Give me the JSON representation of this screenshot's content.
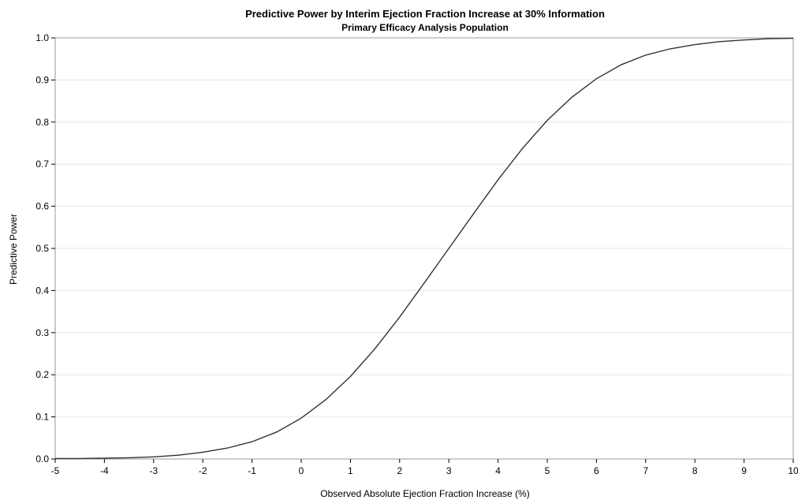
{
  "chart_data": {
    "type": "line",
    "title": "Predictive Power by Interim Ejection Fraction Increase at 30% Information",
    "subtitle": "Primary Efficacy Analysis Population",
    "xlabel": "Observed Absolute Ejection Fraction Increase (%)",
    "ylabel": "Predictive Power",
    "xlim": [
      -5,
      10
    ],
    "ylim": [
      0,
      1
    ],
    "xticks": [
      -5,
      -4,
      -3,
      -2,
      -1,
      0,
      1,
      2,
      3,
      4,
      5,
      6,
      7,
      8,
      9,
      10
    ],
    "yticks": [
      0.0,
      0.1,
      0.2,
      0.3,
      0.4,
      0.5,
      0.6,
      0.7,
      0.8,
      0.9,
      1.0
    ],
    "xtick_labels": [
      "-5",
      "-4",
      "-3",
      "-2",
      "-1",
      "0",
      "1",
      "2",
      "3",
      "4",
      "5",
      "6",
      "7",
      "8",
      "9",
      "10"
    ],
    "ytick_labels": [
      "0.0",
      "0.1",
      "0.2",
      "0.3",
      "0.4",
      "0.5",
      "0.6",
      "0.7",
      "0.8",
      "0.9",
      "1.0"
    ],
    "grid": {
      "horizontal": true,
      "vertical": false
    },
    "line_color": "#333333",
    "grid_color": "#e6e6e6",
    "series": [
      {
        "x": [
          -5,
          -4.5,
          -4,
          -3.5,
          -3,
          -2.5,
          -2,
          -1.5,
          -1,
          -0.5,
          0,
          0.5,
          1,
          1.5,
          2,
          2.5,
          3,
          3.5,
          4,
          4.5,
          5,
          5.5,
          6,
          6.5,
          7,
          7.5,
          8,
          8.5,
          9,
          9.5,
          10
        ],
        "y": [
          0.001,
          0.001,
          0.002,
          0.003,
          0.005,
          0.009,
          0.016,
          0.026,
          0.041,
          0.064,
          0.097,
          0.141,
          0.196,
          0.262,
          0.337,
          0.418,
          0.5,
          0.582,
          0.663,
          0.738,
          0.804,
          0.859,
          0.903,
          0.936,
          0.959,
          0.974,
          0.984,
          0.991,
          0.995,
          0.998,
          0.999
        ]
      }
    ]
  }
}
